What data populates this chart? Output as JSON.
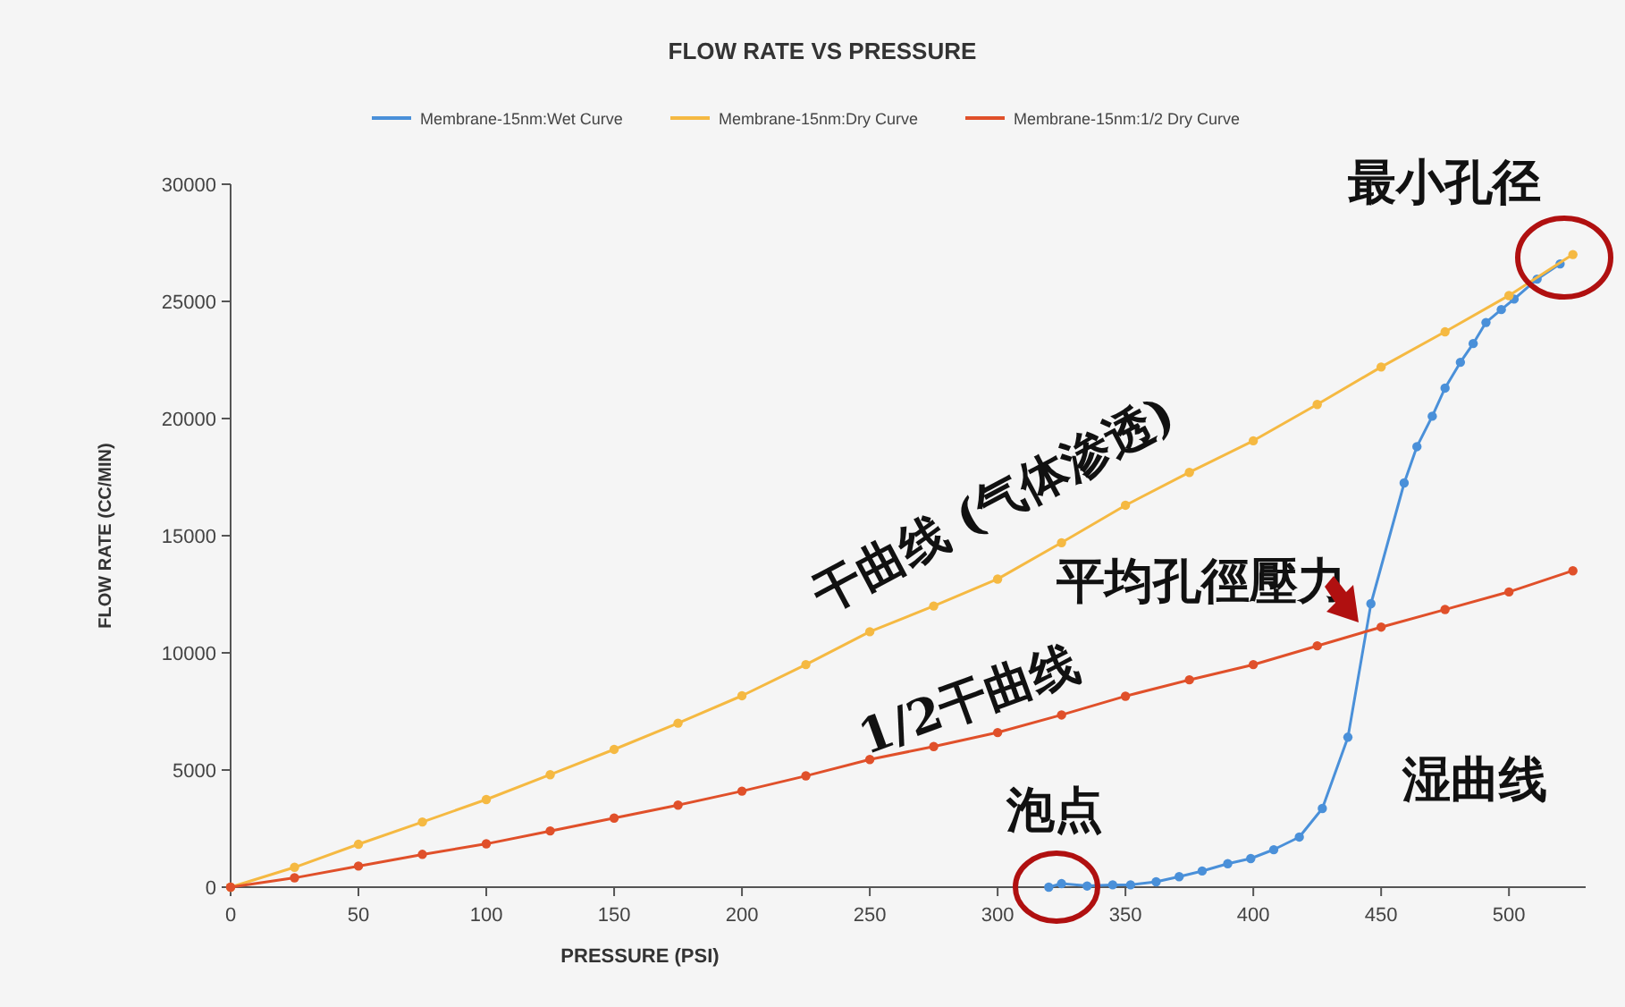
{
  "chart_data": {
    "type": "line",
    "title": "FLOW RATE VS PRESSURE",
    "xlabel": "PRESSURE (PSI)",
    "ylabel": "FLOW RATE (CC/MIN)",
    "xlim": [
      0,
      530
    ],
    "ylim": [
      0,
      30000
    ],
    "xticks": [
      0,
      50,
      100,
      150,
      200,
      250,
      300,
      350,
      400,
      450,
      500
    ],
    "yticks": [
      0,
      5000,
      10000,
      15000,
      20000,
      25000,
      30000
    ],
    "grid": false,
    "legend": "top",
    "marker": "circle",
    "line_style": "solid",
    "series": [
      {
        "name": "Membrane-15nm:Wet Curve",
        "color": "#4a90d9",
        "x": [
          320,
          325,
          335,
          345,
          352,
          362,
          371,
          380,
          390,
          399,
          408,
          418,
          427,
          437,
          446,
          459,
          464,
          470,
          475,
          481,
          486,
          491,
          497,
          502,
          511,
          520
        ],
        "values": [
          0,
          150,
          50,
          100,
          100,
          230,
          450,
          690,
          1000,
          1220,
          1600,
          2140,
          3360,
          6400,
          12100,
          17250,
          18800,
          20100,
          21300,
          22400,
          23200,
          24100,
          24650,
          25100,
          25950,
          26600
        ]
      },
      {
        "name": "Membrane-15nm:Dry Curve",
        "color": "#f5b942",
        "x": [
          0,
          25,
          50,
          75,
          100,
          125,
          150,
          175,
          200,
          225,
          250,
          275,
          300,
          325,
          350,
          375,
          400,
          425,
          450,
          475,
          500,
          525
        ],
        "values": [
          0,
          850,
          1830,
          2780,
          3740,
          4800,
          5880,
          7000,
          8170,
          9500,
          10900,
          12000,
          13150,
          14700,
          16300,
          17700,
          19050,
          20600,
          22200,
          23700,
          25250,
          27000
        ]
      },
      {
        "name": "Membrane-15nm:1/2 Dry Curve",
        "color": "#e0502a",
        "x": [
          0,
          25,
          50,
          75,
          100,
          125,
          150,
          175,
          200,
          225,
          250,
          275,
          300,
          325,
          350,
          375,
          400,
          425,
          450,
          475,
          500,
          525
        ],
        "values": [
          0,
          400,
          900,
          1400,
          1850,
          2400,
          2950,
          3500,
          4100,
          4750,
          5450,
          6000,
          6600,
          7350,
          8150,
          8850,
          9500,
          10300,
          11100,
          11850,
          12600,
          13500
        ]
      }
    ],
    "annotations": [
      "最小孔径",
      "干曲线 (气体渗透)",
      "1/2干曲线",
      "平均孔徑壓力",
      "泡点",
      "湿曲线"
    ]
  }
}
